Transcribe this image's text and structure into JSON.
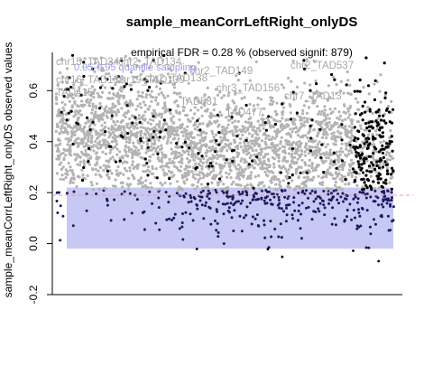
{
  "chart_data": {
    "type": "scatter",
    "title": "sample_meanCorrLeftRight_onlyDS",
    "subtitle": "empirical FDR = 0.28 % (observed signif: 879)",
    "xlabel": "",
    "ylabel": "sample_meanCorrLeftRight_onlyDS observed values",
    "ylim": [
      -0.2,
      0.75
    ],
    "yticks": [
      -0.2,
      0.0,
      0.2,
      0.4,
      0.6
    ],
    "ytick_labels": [
      "-0.2",
      "0.0",
      "0.2",
      "0.4",
      "0.6"
    ],
    "n_points": 3200,
    "fdr_threshold": 0.19,
    "band": {
      "label": "0.05-0.95 quantile sampling",
      "ymin": -0.02,
      "ymax": 0.22
    },
    "series": [
      {
        "name": "",
        "color": "#b3b3b3",
        "role": "non-significant observed values"
      },
      {
        "name": "",
        "color": "#000000",
        "role": "significant observed values"
      },
      {
        "name": "",
        "color": "#1a1a5e",
        "role": "values inside quantile band"
      }
    ],
    "colors": {
      "band": "#c8c8f5",
      "band_label": "#9b9bee",
      "threshold_line": "#e6a0a0",
      "grey_points": "#b3b3b3",
      "dark_points": "#000000",
      "navy_points": "#1a1a5e"
    },
    "annotations": [
      {
        "text": "chr15_TAD34",
        "y": 0.72
      },
      {
        "text": "chr2_TAD134",
        "y": 0.72
      },
      {
        "text": "chr2_TAD138",
        "y": 0.72
      },
      {
        "text": "chr2_TAD537",
        "y": 0.7
      },
      {
        "text": "chr2_TAD149",
        "y": 0.7
      },
      {
        "text": "chr16_TAD138",
        "y": 0.68
      },
      {
        "text": "chr19_TAD130",
        "y": 0.68
      },
      {
        "text": "chr3_TAD156",
        "y": 0.64
      },
      {
        "text": "chr7_TAD13",
        "y": 0.62
      },
      {
        "text": "TAD415",
        "y": 0.64
      },
      {
        "text": "TAD581",
        "y": 0.61
      },
      {
        "text": "TAD477",
        "y": 0.56
      }
    ]
  }
}
